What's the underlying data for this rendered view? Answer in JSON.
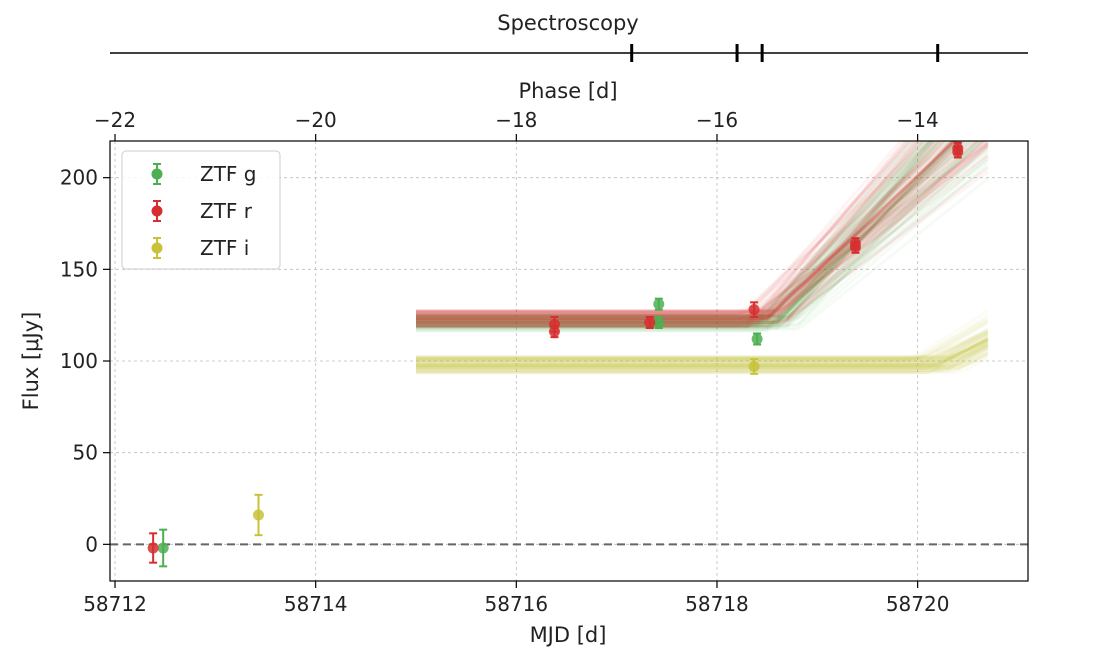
{
  "chart_data": {
    "type": "scatter",
    "xlabel": "MJD [d]",
    "ylabel": "Flux [μJy]",
    "top_axis_label": "Phase [d]",
    "spectroscopy_label": "Spectroscopy",
    "xlim": [
      58711.95,
      58721.1
    ],
    "ylim": [
      -20,
      220
    ],
    "x_ticks": [
      58712,
      58714,
      58716,
      58718,
      58720
    ],
    "x_tick_labels": [
      "58712",
      "58714",
      "58716",
      "58718",
      "58720"
    ],
    "y_ticks": [
      0,
      50,
      100,
      150,
      200
    ],
    "y_tick_labels": [
      "0",
      "50",
      "100",
      "150",
      "200"
    ],
    "phase_ticks": [
      -22,
      -20,
      -18,
      -16,
      -14
    ],
    "phase_tick_labels": [
      "−22",
      "−20",
      "−18",
      "−16",
      "−14"
    ],
    "phase_at_mjd_58712": -22.0,
    "phase_per_mjd": 1.0,
    "spectroscopy_phases": [
      -16.85,
      -15.8,
      -15.55,
      -13.8
    ],
    "grid": true,
    "zero_line": true,
    "legend_position": "top-left",
    "series": [
      {
        "name": "ZTF g",
        "color": "#4caf50",
        "points": [
          {
            "x": 58712.48,
            "y": -2,
            "err": 10
          },
          {
            "x": 58717.42,
            "y": 131,
            "err": 3
          },
          {
            "x": 58717.42,
            "y": 121,
            "err": 3
          },
          {
            "x": 58718.4,
            "y": 112,
            "err": 3
          }
        ],
        "model": {
          "plateau": 121,
          "rise_start": 58718.6,
          "slope": 55,
          "x_start": 58715.0,
          "x_end": 58720.7
        }
      },
      {
        "name": "ZTF r",
        "color": "#d62f2f",
        "points": [
          {
            "x": 58712.38,
            "y": -2,
            "err": 8
          },
          {
            "x": 58716.38,
            "y": 120,
            "err": 4
          },
          {
            "x": 58716.38,
            "y": 116,
            "err": 3
          },
          {
            "x": 58717.33,
            "y": 121,
            "err": 3
          },
          {
            "x": 58718.37,
            "y": 128,
            "err": 4
          },
          {
            "x": 58719.38,
            "y": 164,
            "err": 3
          },
          {
            "x": 58719.38,
            "y": 162,
            "err": 3
          },
          {
            "x": 58720.4,
            "y": 216,
            "err": 3
          },
          {
            "x": 58720.4,
            "y": 214,
            "err": 3
          }
        ],
        "model": {
          "plateau": 123,
          "rise_start": 58718.5,
          "slope": 52,
          "x_start": 58715.0,
          "x_end": 58720.7
        }
      },
      {
        "name": "ZTF i",
        "color": "#c7c23a",
        "points": [
          {
            "x": 58713.43,
            "y": 16,
            "err": 11
          },
          {
            "x": 58718.37,
            "y": 97,
            "err": 4
          }
        ],
        "model": {
          "plateau": 98,
          "rise_start": 58720.2,
          "slope": 28,
          "x_start": 58715.0,
          "x_end": 58720.7
        }
      }
    ]
  }
}
